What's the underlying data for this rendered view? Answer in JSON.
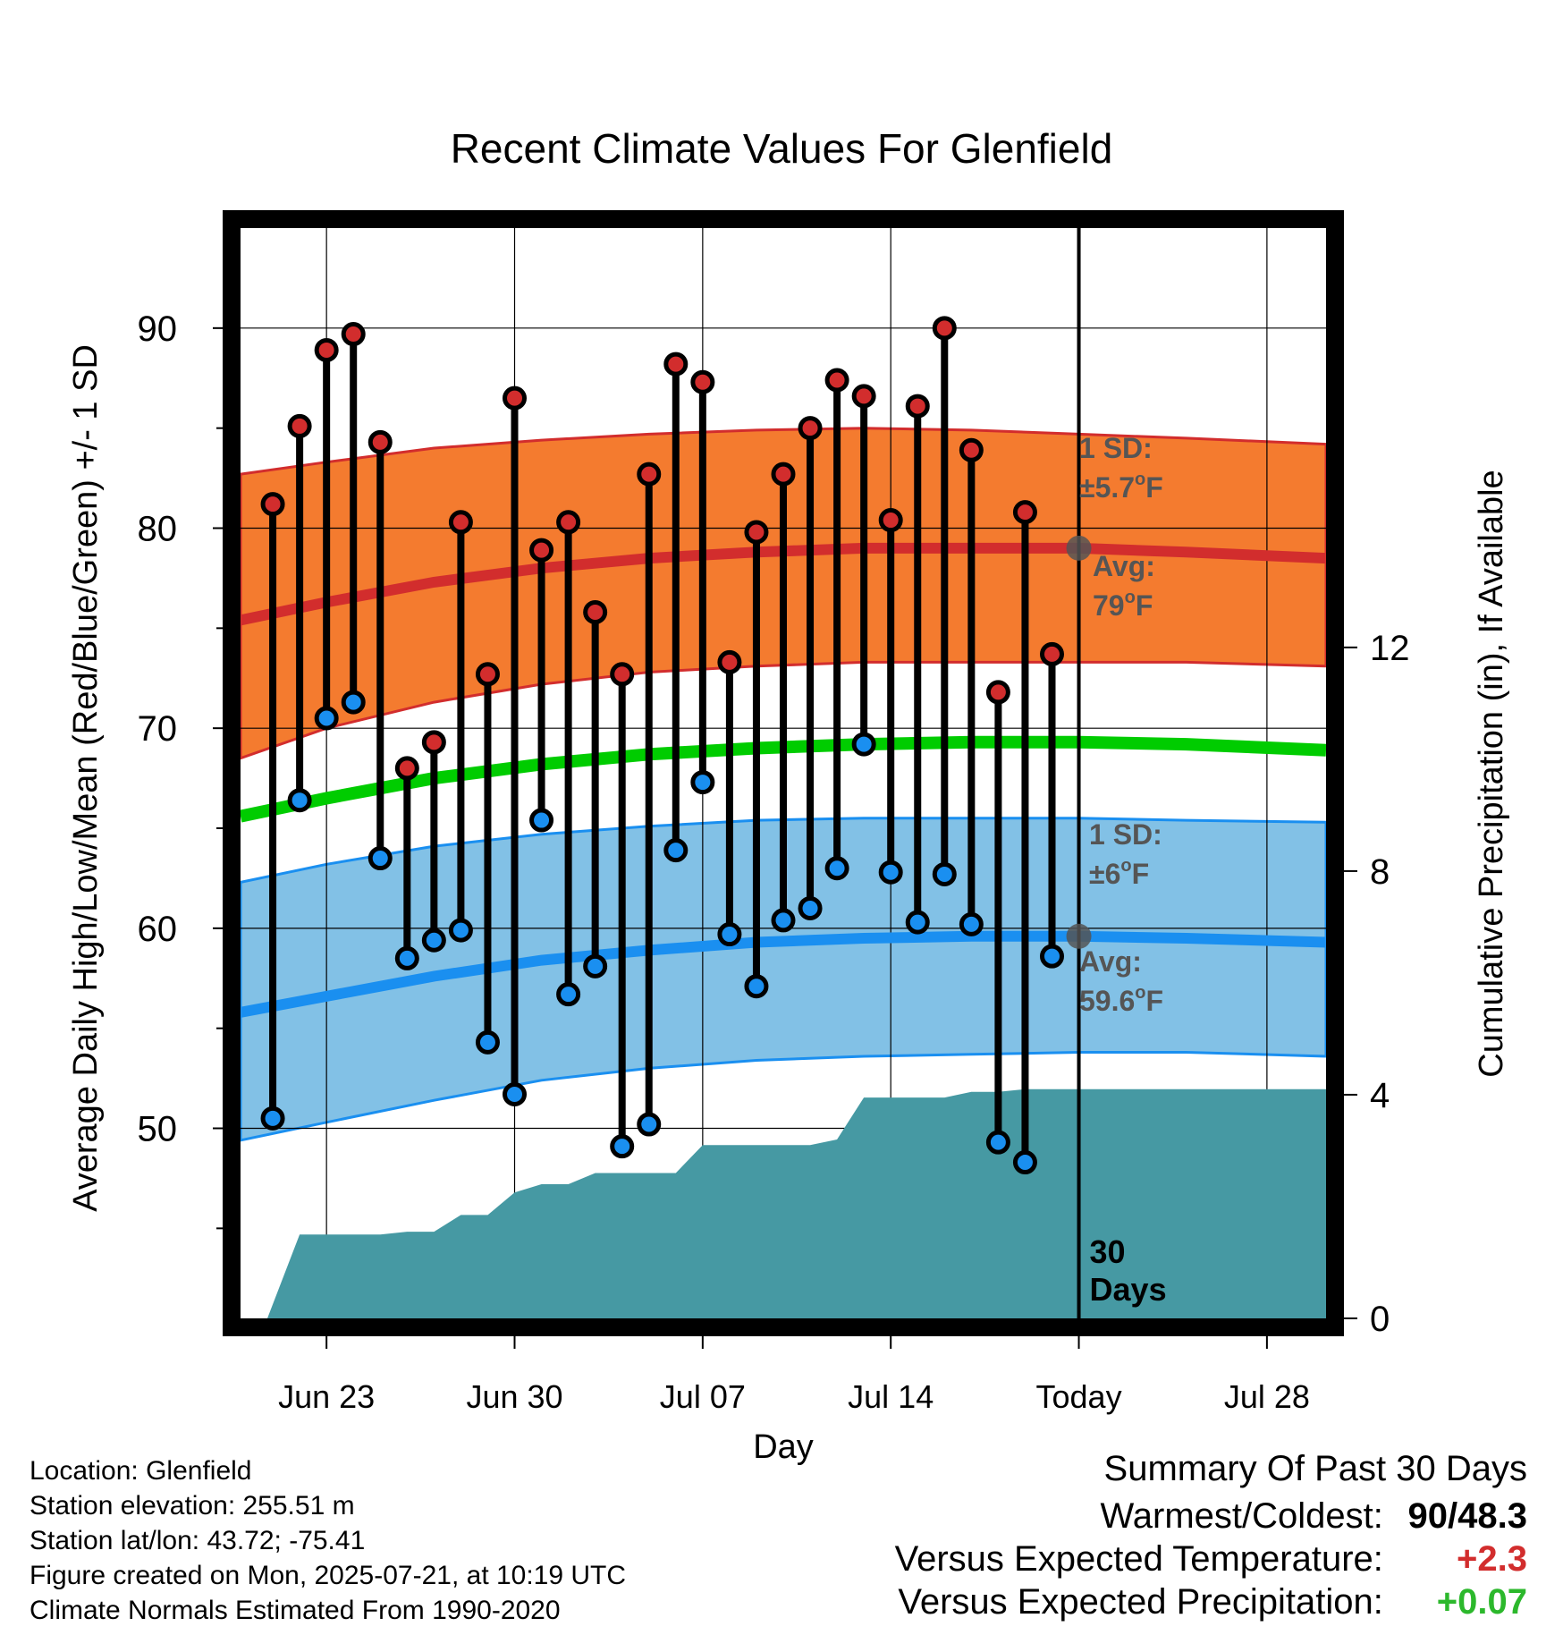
{
  "chart_data": {
    "type": "line",
    "title": "Recent Climate Values For Glenfield",
    "xlabel": "Day",
    "ylabel": "Average Daily High/Low/Mean (Red/Blue/Green) +/- 1 SD",
    "y2label": "Cumulative Precipitation (in), If Available",
    "ylim": [
      40.5,
      95
    ],
    "y2lim": [
      0,
      19.5
    ],
    "yticks": [
      90,
      80,
      70,
      60,
      50
    ],
    "y2ticks": [
      12,
      8,
      4,
      0
    ],
    "xlim": [
      -3.2,
      37.2
    ],
    "xticks": [
      {
        "day": 0,
        "label": "Jun 23"
      },
      {
        "day": 7,
        "label": "Jun 30"
      },
      {
        "day": 14,
        "label": "Jul 07"
      },
      {
        "day": 21,
        "label": "Jul 14"
      },
      {
        "day": 28,
        "label": "Today"
      },
      {
        "day": 35,
        "label": "Jul 28"
      }
    ],
    "grid": true,
    "today_label": "30\nDays",
    "days": [
      -2,
      -1,
      0,
      1,
      2,
      3,
      4,
      5,
      6,
      7,
      8,
      9,
      10,
      11,
      12,
      13,
      14,
      15,
      16,
      17,
      18,
      19,
      20,
      21,
      22,
      23,
      24,
      25,
      26,
      27
    ],
    "highs": [
      81.2,
      85.1,
      88.9,
      89.7,
      84.3,
      68.0,
      69.3,
      80.3,
      72.7,
      86.5,
      78.9,
      80.3,
      75.8,
      72.7,
      82.7,
      88.2,
      87.3,
      73.3,
      79.8,
      82.7,
      85.0,
      87.4,
      86.6,
      80.4,
      86.1,
      90.0,
      83.9,
      71.8,
      80.8,
      73.7
    ],
    "lows": [
      50.5,
      66.4,
      70.5,
      71.3,
      63.5,
      58.5,
      59.4,
      59.9,
      54.3,
      51.7,
      65.4,
      56.7,
      58.1,
      49.1,
      50.2,
      63.9,
      67.3,
      59.7,
      57.1,
      60.4,
      61.0,
      63.0,
      69.2,
      62.8,
      60.3,
      62.7,
      60.2,
      49.3,
      48.3,
      58.6
    ],
    "normal_high": {
      "days": [
        -3.2,
        0,
        4,
        8,
        12,
        16,
        20,
        24,
        28,
        32,
        37.2
      ],
      "avg": [
        75.4,
        76.3,
        77.3,
        78.0,
        78.5,
        78.8,
        79.0,
        79.0,
        79.0,
        78.8,
        78.5
      ],
      "upper": [
        82.7,
        83.3,
        84.0,
        84.4,
        84.7,
        84.9,
        85.0,
        84.9,
        84.7,
        84.5,
        84.2
      ],
      "lower": [
        68.5,
        70.0,
        71.3,
        72.2,
        72.8,
        73.1,
        73.3,
        73.3,
        73.3,
        73.3,
        73.1
      ]
    },
    "normal_low": {
      "days": [
        -3.2,
        0,
        4,
        8,
        12,
        16,
        20,
        24,
        28,
        32,
        37.2
      ],
      "avg": [
        55.8,
        56.6,
        57.6,
        58.4,
        58.9,
        59.3,
        59.5,
        59.6,
        59.6,
        59.5,
        59.3
      ],
      "upper": [
        62.3,
        63.2,
        64.1,
        64.7,
        65.1,
        65.4,
        65.5,
        65.5,
        65.5,
        65.4,
        65.3
      ],
      "lower": [
        49.4,
        50.3,
        51.4,
        52.4,
        53.0,
        53.4,
        53.6,
        53.7,
        53.8,
        53.8,
        53.6
      ]
    },
    "normal_mean": {
      "days": [
        -3.2,
        0,
        4,
        8,
        12,
        16,
        20,
        24,
        28,
        32,
        37.2
      ],
      "values": [
        65.6,
        66.5,
        67.5,
        68.2,
        68.7,
        69.0,
        69.2,
        69.3,
        69.3,
        69.2,
        68.9
      ]
    },
    "precip": {
      "days": [
        -2.2,
        -1,
        0,
        1,
        2,
        3,
        4,
        5,
        6,
        7,
        8,
        9,
        10,
        11,
        12,
        13,
        14,
        15,
        16,
        17,
        18,
        19,
        20,
        21,
        22,
        23,
        24,
        25,
        26,
        27,
        28,
        37.2
      ],
      "values": [
        0.0,
        1.5,
        1.5,
        1.5,
        1.5,
        1.55,
        1.55,
        1.85,
        1.85,
        2.25,
        2.4,
        2.4,
        2.6,
        2.6,
        2.6,
        2.6,
        3.1,
        3.1,
        3.1,
        3.1,
        3.1,
        3.2,
        3.95,
        3.95,
        3.95,
        3.95,
        4.05,
        4.05,
        4.1,
        4.1,
        4.1,
        4.1
      ]
    },
    "annotations": {
      "high_sd": {
        "line1": "1 SD:",
        "line2": "±5.7",
        "unit": "F"
      },
      "high_avg": {
        "line1": "Avg:",
        "line2": "79",
        "unit": "F",
        "value": 79
      },
      "low_sd": {
        "line1": "1 SD:",
        "line2": "±6",
        "unit": "F"
      },
      "low_avg": {
        "line1": "Avg:",
        "line2": "59.6",
        "unit": "F",
        "value": 59.6
      }
    }
  },
  "colors": {
    "high_band": "#f47b2f",
    "high_line": "#d22d2d",
    "low_band": "#82c1e6",
    "low_line": "#1a8ff0",
    "mean_line": "#00cc00",
    "precip": "#4699a3",
    "high_marker": "#d22d2d",
    "low_marker": "#1a8ff0",
    "annotation": "#555555",
    "positive_temp": "#d22d2d",
    "positive_precip": "#2cb82c"
  },
  "footer": {
    "location": "Location: Glenfield",
    "elevation": "Station elevation: 255.51 m",
    "latlon": "Station lat/lon: 43.72; -75.41",
    "created": "Figure created on Mon, 2025-07-21, at 10:19 UTC",
    "normals": "Climate Normals Estimated From 1990-2020"
  },
  "summary": {
    "heading": "Summary Of Past 30 Days",
    "warmest_label": "Warmest/Coldest:",
    "warmest_value": "90/48.3",
    "temp_label": "Versus Expected Temperature:",
    "temp_value": "+2.3",
    "precip_label": "Versus Expected Precipitation:",
    "precip_value": "+0.07"
  }
}
